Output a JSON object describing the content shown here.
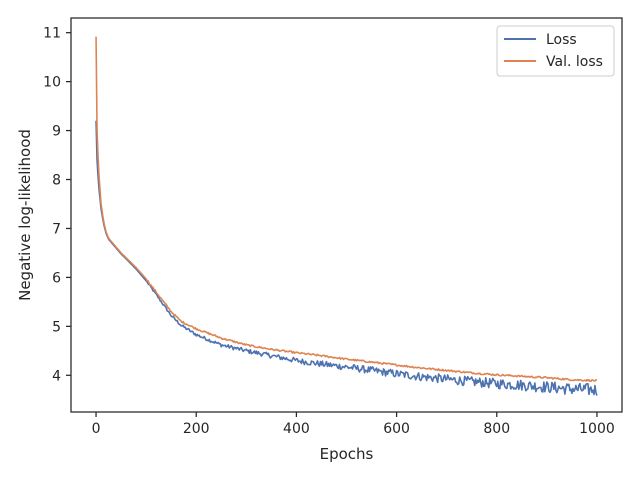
{
  "chart_data": {
    "type": "line",
    "xlabel": "Epochs",
    "ylabel": "Negative log-likelihood",
    "xlim": [
      -50,
      1050
    ],
    "ylim": [
      3.25,
      11.3
    ],
    "xticks": [
      0,
      200,
      400,
      600,
      800,
      1000
    ],
    "yticks": [
      4,
      5,
      6,
      7,
      8,
      9,
      10,
      11
    ],
    "legend_position": "top-right",
    "grid": false,
    "series": [
      {
        "name": "Loss",
        "color": "#4c72b0",
        "noise": "high",
        "x": [
          0,
          2,
          5,
          10,
          15,
          20,
          25,
          30,
          40,
          50,
          60,
          80,
          100,
          120,
          150,
          170,
          200,
          250,
          300,
          350,
          400,
          450,
          500,
          550,
          600,
          650,
          700,
          750,
          800,
          850,
          900,
          950,
          1000
        ],
        "y": [
          9.2,
          8.4,
          7.9,
          7.4,
          7.1,
          6.9,
          6.78,
          6.72,
          6.6,
          6.48,
          6.38,
          6.17,
          5.93,
          5.65,
          5.22,
          5.02,
          4.83,
          4.62,
          4.5,
          4.4,
          4.3,
          4.23,
          4.17,
          4.1,
          4.03,
          3.97,
          3.92,
          3.87,
          3.83,
          3.8,
          3.76,
          3.72,
          3.7
        ]
      },
      {
        "name": "Val. loss",
        "color": "#dd8452",
        "noise": "low",
        "x": [
          0,
          2,
          5,
          10,
          15,
          20,
          25,
          30,
          40,
          50,
          60,
          80,
          100,
          120,
          150,
          170,
          200,
          250,
          300,
          350,
          400,
          450,
          500,
          550,
          600,
          650,
          700,
          750,
          800,
          850,
          900,
          950,
          1000
        ],
        "y": [
          10.92,
          9.0,
          8.2,
          7.5,
          7.15,
          6.93,
          6.8,
          6.74,
          6.62,
          6.5,
          6.4,
          6.2,
          5.97,
          5.7,
          5.3,
          5.1,
          4.95,
          4.76,
          4.62,
          4.53,
          4.46,
          4.4,
          4.33,
          4.27,
          4.21,
          4.15,
          4.1,
          4.05,
          4.01,
          3.98,
          3.95,
          3.91,
          3.89
        ]
      }
    ]
  }
}
